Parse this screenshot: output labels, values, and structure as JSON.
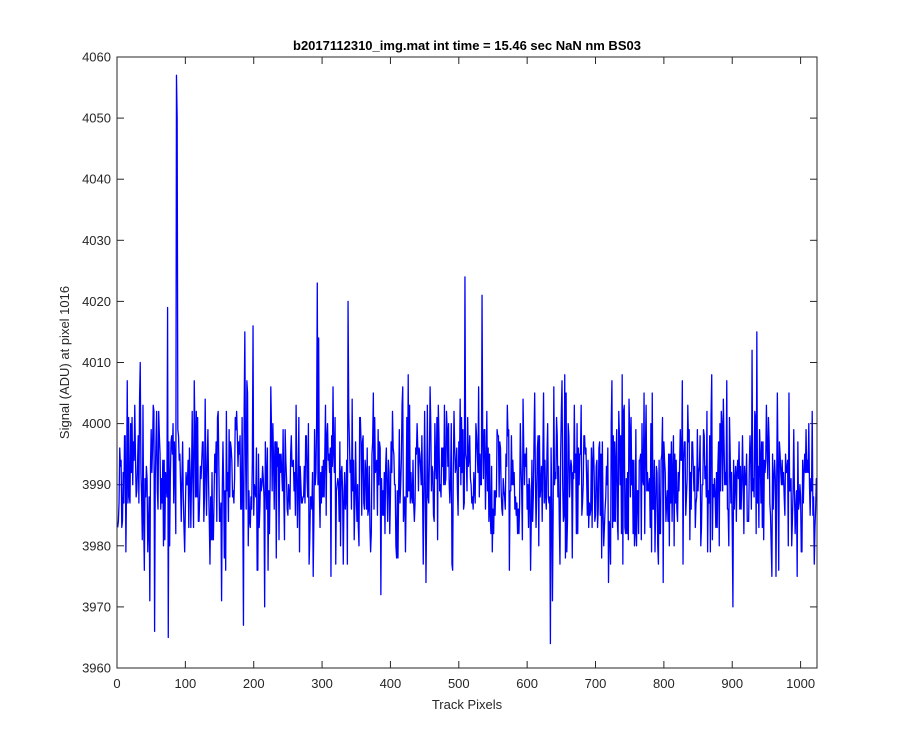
{
  "chart_data": {
    "type": "line",
    "title": "b2017112310_img.mat int time = 15.46 sec  NaN nm BS03",
    "xlabel": "Track Pixels",
    "ylabel": "Signal (ADU) at pixel 1016",
    "xlim": [
      0,
      1024
    ],
    "ylim": [
      3960,
      4060
    ],
    "xticks": [
      0,
      100,
      200,
      300,
      400,
      500,
      600,
      700,
      800,
      900,
      1000
    ],
    "yticks": [
      3960,
      3970,
      3980,
      3990,
      4000,
      4010,
      4020,
      4030,
      4040,
      4050,
      4060
    ],
    "grid": false,
    "box": true,
    "line_color": "#0000ff",
    "n_points": 1024,
    "baseline_mean": 3991,
    "baseline_spread": 7,
    "peaks": [
      {
        "x": 87,
        "y": 4057
      },
      {
        "x": 88,
        "y": 4050
      },
      {
        "x": 74,
        "y": 4019
      },
      {
        "x": 187,
        "y": 4015
      },
      {
        "x": 199,
        "y": 4016
      },
      {
        "x": 293,
        "y": 4023
      },
      {
        "x": 295,
        "y": 4014
      },
      {
        "x": 338,
        "y": 4020
      },
      {
        "x": 509,
        "y": 4024
      },
      {
        "x": 534,
        "y": 4021
      },
      {
        "x": 936,
        "y": 4015
      },
      {
        "x": 929,
        "y": 4012
      },
      {
        "x": 34,
        "y": 4010
      }
    ],
    "troughs": [
      {
        "x": 55,
        "y": 3966
      },
      {
        "x": 75,
        "y": 3965
      },
      {
        "x": 48,
        "y": 3971
      },
      {
        "x": 185,
        "y": 3967
      },
      {
        "x": 216,
        "y": 3970
      },
      {
        "x": 634,
        "y": 3964
      },
      {
        "x": 637,
        "y": 3971
      },
      {
        "x": 901,
        "y": 3970
      },
      {
        "x": 386,
        "y": 3972
      },
      {
        "x": 153,
        "y": 3971
      },
      {
        "x": 968,
        "y": 3976
      }
    ]
  }
}
